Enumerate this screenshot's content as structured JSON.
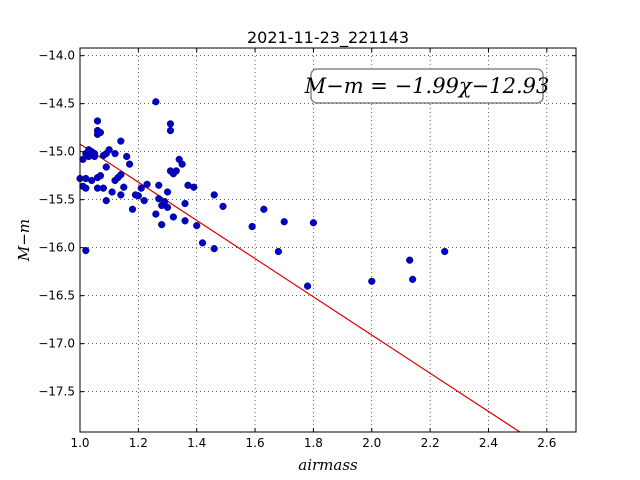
{
  "chart_data": {
    "type": "scatter",
    "title": "2021-11-23_221143",
    "xlabel": "airmass",
    "ylabel": "M−m",
    "xlim": [
      1.0,
      2.7
    ],
    "ylim": [
      -17.92,
      -13.92
    ],
    "xticks": [
      1.0,
      1.2,
      1.4,
      1.6,
      1.8,
      2.0,
      2.2,
      2.4,
      2.6
    ],
    "xtick_labels": [
      "1.0",
      "1.2",
      "1.4",
      "1.6",
      "1.8",
      "2.0",
      "2.2",
      "2.4",
      "2.6"
    ],
    "yticks": [
      -14.0,
      -14.5,
      -15.0,
      -15.5,
      -16.0,
      -16.5,
      -17.0,
      -17.5
    ],
    "ytick_labels": [
      "−14.0",
      "−14.5",
      "−15.0",
      "−15.5",
      "−16.0",
      "−16.5",
      "−17.0",
      "−17.5"
    ],
    "grid": true,
    "annotation": "M−m = −1.99χ−12.93",
    "fit": {
      "slope": -1.99,
      "intercept": -12.93,
      "color": "#dd0000"
    },
    "point_color": "#0000cc",
    "points": [
      [
        1.0,
        -15.28
      ],
      [
        1.01,
        -15.36
      ],
      [
        1.01,
        -15.08
      ],
      [
        1.02,
        -15.02
      ],
      [
        1.02,
        -15.38
      ],
      [
        1.02,
        -15.28
      ],
      [
        1.02,
        -16.03
      ],
      [
        1.03,
        -14.98
      ],
      [
        1.03,
        -15.05
      ],
      [
        1.04,
        -15.0
      ],
      [
        1.04,
        -15.3
      ],
      [
        1.05,
        -15.05
      ],
      [
        1.05,
        -15.02
      ],
      [
        1.06,
        -14.78
      ],
      [
        1.06,
        -14.82
      ],
      [
        1.06,
        -14.68
      ],
      [
        1.06,
        -15.38
      ],
      [
        1.06,
        -15.27
      ],
      [
        1.07,
        -15.25
      ],
      [
        1.07,
        -14.8
      ],
      [
        1.08,
        -15.38
      ],
      [
        1.08,
        -15.04
      ],
      [
        1.09,
        -15.02
      ],
      [
        1.09,
        -15.51
      ],
      [
        1.09,
        -15.16
      ],
      [
        1.1,
        -14.98
      ],
      [
        1.11,
        -15.42
      ],
      [
        1.12,
        -15.02
      ],
      [
        1.12,
        -15.3
      ],
      [
        1.13,
        -15.27
      ],
      [
        1.14,
        -15.24
      ],
      [
        1.14,
        -14.89
      ],
      [
        1.14,
        -15.45
      ],
      [
        1.15,
        -15.37
      ],
      [
        1.16,
        -15.05
      ],
      [
        1.17,
        -15.13
      ],
      [
        1.18,
        -15.6
      ],
      [
        1.19,
        -15.45
      ],
      [
        1.2,
        -15.46
      ],
      [
        1.21,
        -15.38
      ],
      [
        1.22,
        -15.51
      ],
      [
        1.23,
        -15.34
      ],
      [
        1.26,
        -14.48
      ],
      [
        1.26,
        -15.65
      ],
      [
        1.27,
        -15.49
      ],
      [
        1.27,
        -15.35
      ],
      [
        1.28,
        -15.56
      ],
      [
        1.28,
        -15.76
      ],
      [
        1.29,
        -15.52
      ],
      [
        1.3,
        -15.42
      ],
      [
        1.3,
        -15.58
      ],
      [
        1.31,
        -15.2
      ],
      [
        1.31,
        -14.71
      ],
      [
        1.31,
        -14.78
      ],
      [
        1.32,
        -15.23
      ],
      [
        1.32,
        -15.68
      ],
      [
        1.33,
        -15.2
      ],
      [
        1.34,
        -15.08
      ],
      [
        1.35,
        -15.13
      ],
      [
        1.36,
        -15.72
      ],
      [
        1.36,
        -15.54
      ],
      [
        1.37,
        -15.35
      ],
      [
        1.39,
        -15.37
      ],
      [
        1.4,
        -15.77
      ],
      [
        1.42,
        -15.95
      ],
      [
        1.46,
        -15.45
      ],
      [
        1.46,
        -16.01
      ],
      [
        1.49,
        -15.57
      ],
      [
        1.59,
        -15.78
      ],
      [
        1.63,
        -15.6
      ],
      [
        1.68,
        -16.04
      ],
      [
        1.7,
        -15.73
      ],
      [
        1.78,
        -16.4
      ],
      [
        1.8,
        -15.74
      ],
      [
        2.0,
        -16.35
      ],
      [
        2.13,
        -16.13
      ],
      [
        2.14,
        -16.33
      ],
      [
        2.25,
        -16.04
      ]
    ]
  }
}
